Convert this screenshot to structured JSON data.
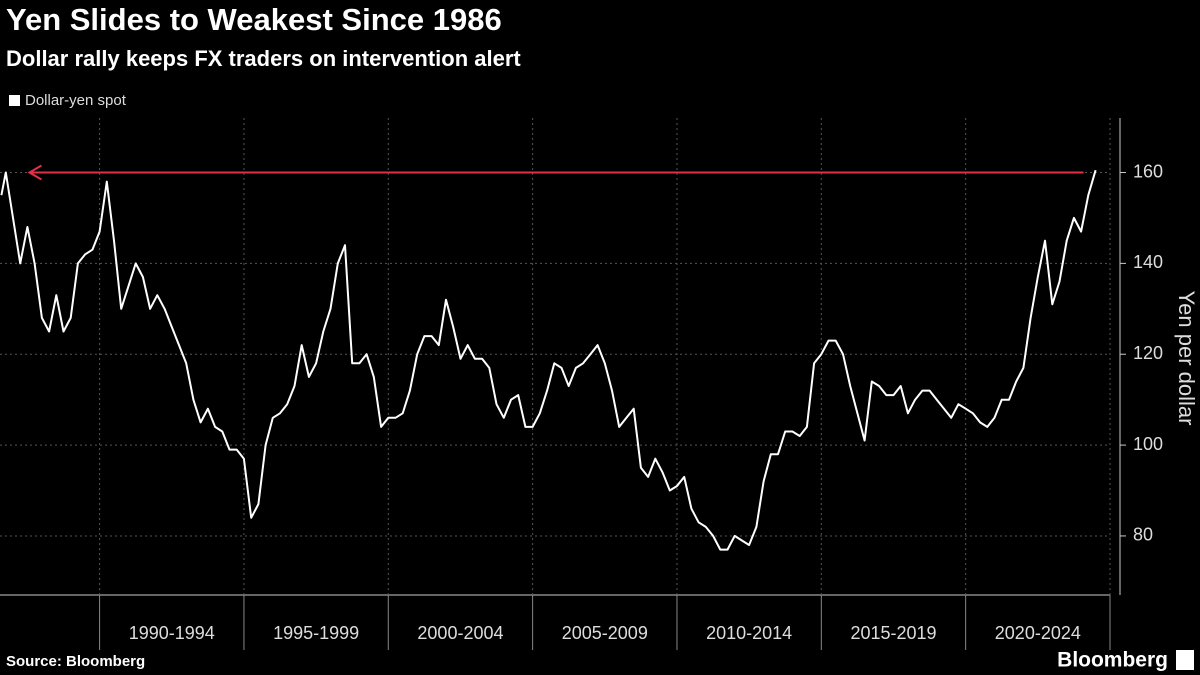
{
  "chart_data": {
    "type": "line",
    "title": "Yen Slides to Weakest Since 1986",
    "subtitle": "Dollar rally keeps FX traders on intervention alert",
    "y_label": "Yen per dollar",
    "source": "Source: Bloomberg",
    "brand": "Bloomberg",
    "xlim": [
      1986.55,
      2025
    ],
    "xticks": [
      1990,
      1995,
      2000,
      2005,
      2010,
      2015,
      2020,
      2025
    ],
    "x_periods": [
      "1990-1994",
      "1995-1999",
      "2000-2004",
      "2005-2009",
      "2010-2014",
      "2015-2019",
      "2020-2024"
    ],
    "ylim": [
      67,
      172
    ],
    "yticks": [
      80,
      100,
      120,
      140,
      160
    ],
    "grid": true,
    "reference_line": 160,
    "reference_color": "#e0314b",
    "series": [
      {
        "name": "Dollar-yen spot",
        "color": "#ffffff",
        "x": [
          1986.6,
          1986.75,
          1987,
          1987.25,
          1987.5,
          1987.75,
          1988,
          1988.25,
          1988.5,
          1988.75,
          1989,
          1989.25,
          1989.5,
          1989.75,
          1990,
          1990.25,
          1990.5,
          1990.75,
          1991,
          1991.25,
          1991.5,
          1991.75,
          1992,
          1992.25,
          1992.5,
          1992.75,
          1993,
          1993.25,
          1993.5,
          1993.75,
          1994,
          1994.25,
          1994.5,
          1994.75,
          1995,
          1995.25,
          1995.5,
          1995.75,
          1996,
          1996.25,
          1996.5,
          1996.75,
          1997,
          1997.25,
          1997.5,
          1997.75,
          1998,
          1998.25,
          1998.5,
          1998.75,
          1999,
          1999.25,
          1999.5,
          1999.75,
          2000,
          2000.25,
          2000.5,
          2000.75,
          2001,
          2001.25,
          2001.5,
          2001.75,
          2002,
          2002.25,
          2002.5,
          2002.75,
          2003,
          2003.25,
          2003.5,
          2003.75,
          2004,
          2004.25,
          2004.5,
          2004.75,
          2005,
          2005.25,
          2005.5,
          2005.75,
          2006,
          2006.25,
          2006.5,
          2006.75,
          2007,
          2007.25,
          2007.5,
          2007.75,
          2008,
          2008.25,
          2008.5,
          2008.75,
          2009,
          2009.25,
          2009.5,
          2009.75,
          2010,
          2010.25,
          2010.5,
          2010.75,
          2011,
          2011.25,
          2011.5,
          2011.75,
          2012,
          2012.25,
          2012.5,
          2012.75,
          2013,
          2013.25,
          2013.5,
          2013.75,
          2014,
          2014.25,
          2014.5,
          2014.75,
          2015,
          2015.25,
          2015.5,
          2015.75,
          2016,
          2016.25,
          2016.5,
          2016.75,
          2017,
          2017.25,
          2017.5,
          2017.75,
          2018,
          2018.25,
          2018.5,
          2018.75,
          2019,
          2019.25,
          2019.5,
          2019.75,
          2020,
          2020.25,
          2020.5,
          2020.75,
          2021,
          2021.25,
          2021.5,
          2021.75,
          2022,
          2022.25,
          2022.5,
          2022.75,
          2023,
          2023.25,
          2023.5,
          2023.75,
          2024,
          2024.25,
          2024.5
        ],
        "values": [
          155,
          160,
          150,
          140,
          148,
          140,
          128,
          125,
          133,
          125,
          128,
          140,
          142,
          143,
          147,
          158,
          145,
          130,
          135,
          140,
          137,
          130,
          133,
          130,
          126,
          122,
          118,
          110,
          105,
          108,
          104,
          103,
          99,
          99,
          97,
          84,
          87,
          100,
          106,
          107,
          109,
          113,
          122,
          115,
          118,
          125,
          130,
          140,
          144,
          118,
          118,
          120,
          115,
          104,
          106,
          106,
          107,
          112,
          120,
          124,
          124,
          122,
          132,
          126,
          119,
          122,
          119,
          119,
          117,
          109,
          106,
          110,
          111,
          104,
          104,
          107,
          112,
          118,
          117,
          113,
          117,
          118,
          120,
          122,
          118,
          112,
          104,
          106,
          108,
          95,
          93,
          97,
          94,
          90,
          91,
          93,
          86,
          83,
          82,
          80,
          77,
          77,
          80,
          79,
          78,
          82,
          92,
          98,
          98,
          103,
          103,
          102,
          104,
          118,
          120,
          123,
          123,
          120,
          113,
          107,
          101,
          114,
          113,
          111,
          111,
          113,
          107,
          110,
          112,
          112,
          110,
          108,
          106,
          109,
          108,
          107,
          105,
          104,
          106,
          110,
          110,
          114,
          117,
          128,
          137,
          145,
          131,
          136,
          145,
          150,
          147,
          155,
          160.5
        ]
      }
    ]
  }
}
